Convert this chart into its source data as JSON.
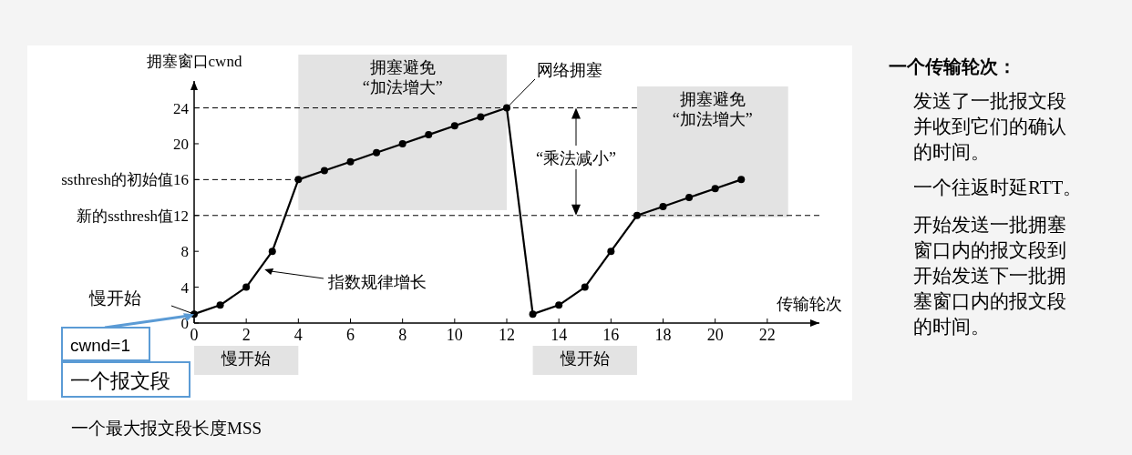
{
  "chart_data": {
    "type": "line",
    "xlabel": "传输轮次",
    "ylabel": "拥塞窗口cwnd",
    "x": [
      0,
      1,
      2,
      3,
      4,
      5,
      6,
      7,
      8,
      9,
      10,
      11,
      12,
      13,
      14,
      15,
      16,
      17,
      18,
      19,
      20,
      21
    ],
    "series": [
      {
        "color": "#000000",
        "values": [
          1,
          2,
          4,
          8,
          16,
          17,
          18,
          19,
          20,
          21,
          22,
          23,
          24,
          1,
          2,
          4,
          8,
          12,
          13,
          14,
          15,
          16
        ]
      }
    ],
    "xlim": [
      0,
      24
    ],
    "ylim": [
      0,
      27
    ],
    "xticks": [
      0,
      2,
      4,
      6,
      8,
      10,
      12,
      14,
      16,
      18,
      20,
      22
    ],
    "yticks": [
      0,
      4,
      8,
      {
        "value": 12,
        "label": "新的ssthresh值12"
      },
      {
        "value": 16,
        "label": "ssthresh的初始值16"
      },
      20,
      24
    ],
    "marker": "circle",
    "line_style": "solid",
    "ref_lines": [
      {
        "axis": "y",
        "value": 24,
        "line_style": "dashed"
      },
      {
        "axis": "y",
        "value": 16,
        "line_style": "dashed"
      },
      {
        "axis": "y",
        "value": 12,
        "line_style": "dashed"
      }
    ],
    "bands": [
      {
        "axis": "x",
        "from": 4,
        "to": 12,
        "label": "拥塞避免\n“加法增大”",
        "color": "#e3e3e3"
      },
      {
        "axis": "x",
        "from": 17,
        "to": 22.8,
        "label": "拥塞避免\n“加法增大”",
        "color": "#e3e3e3"
      }
    ],
    "annotations": [
      {
        "text": "网络拥塞",
        "x": 12,
        "y": 24
      },
      {
        "text": "指数规律增长",
        "x": 2.7,
        "y": 6
      },
      {
        "text": "慢开始",
        "x": 0,
        "y": 1
      },
      "“乘法减小”",
      "cwnd=1",
      "一个报文段",
      "一个最大报文段长度MSS",
      "一个传输轮次：",
      "发送了一批报文段并收到它们的确认的时间。",
      "一个往返时延RTT。",
      "开始发送一批拥塞窗口内的报文段到开始发送下一批拥塞窗口内的报文段的时间。",
      "慢开始",
      "慢开始"
    ]
  }
}
